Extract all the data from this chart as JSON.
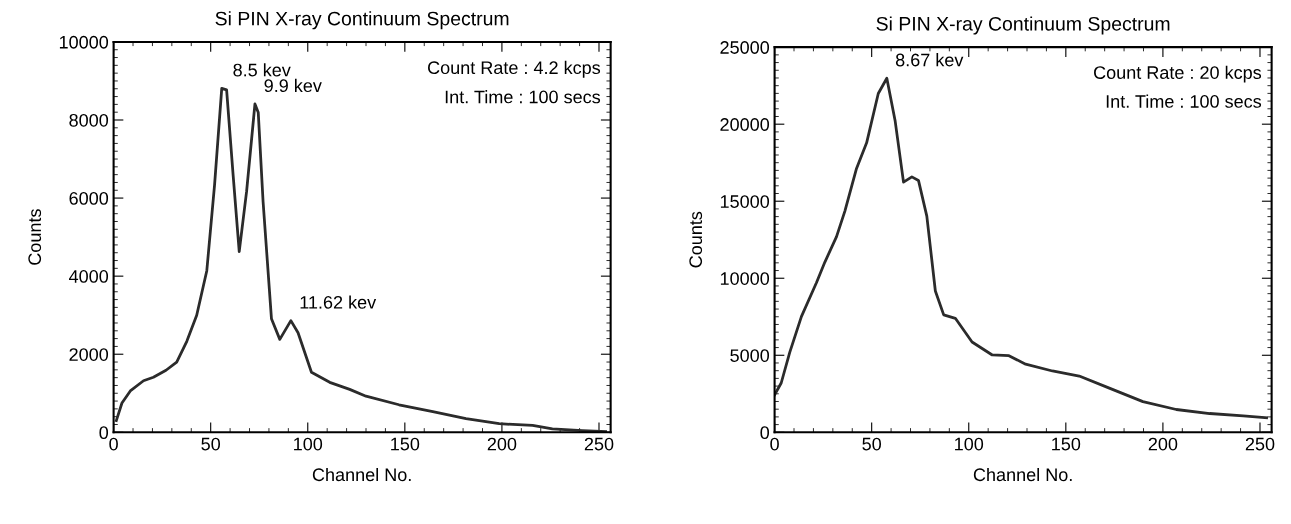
{
  "chart_data": [
    {
      "type": "line",
      "title": "Si PIN X-ray Continuum Spectrum",
      "xlabel": "Channel No.",
      "ylabel": "Counts",
      "color": "#2b2b2b",
      "x": [
        1.4,
        4.3,
        8.6,
        15.4,
        20.5,
        27,
        32.5,
        37.7,
        42.8,
        48,
        52,
        55.7,
        58.2,
        61.6,
        64.7,
        68.5,
        72.8,
        74.5,
        77,
        81.3,
        85.6,
        91.3,
        95,
        101.9,
        111.3,
        121.6,
        130,
        147,
        164.4,
        181.5,
        198.6,
        215.8,
        226,
        241.4,
        253.4
      ],
      "values": [
        300,
        750,
        1060,
        1320,
        1410,
        1590,
        1800,
        2330,
        3000,
        4140,
        6340,
        8810,
        8770,
        6560,
        4630,
        6170,
        8410,
        8190,
        5900,
        2910,
        2380,
        2860,
        2550,
        1540,
        1280,
        1100,
        925,
        705,
        530,
        350,
        220,
        176,
        88,
        44,
        20
      ],
      "xlim": [
        0,
        256
      ],
      "xticks": [
        0,
        50,
        100,
        150,
        200,
        250
      ],
      "ylim": [
        0,
        10000
      ],
      "yticks": [
        0,
        2000,
        4000,
        6000,
        8000,
        10000
      ],
      "grid": false,
      "marker": "none",
      "line_style": "solid",
      "annotations": [
        {
          "text": "8.5 kev",
          "x": 57,
          "y": 8810
        },
        {
          "text": "9.9 kev",
          "x": 73,
          "y": 8410
        },
        {
          "text": "11.62 kev",
          "x": 91.3,
          "y": 2860
        },
        "Count Rate : 4.2 kcps",
        "Int. Time : 100 secs"
      ]
    },
    {
      "type": "line",
      "title": "Si PIN X-ray Continuum Spectrum",
      "xlabel": "Channel No.",
      "ylabel": "Counts",
      "color": "#2b2b2b",
      "x": [
        0,
        3.4,
        7.8,
        13.8,
        21.6,
        25.9,
        31.9,
        36.2,
        42.2,
        47.4,
        53.4,
        57.8,
        62.1,
        66.4,
        70.7,
        74.1,
        78.4,
        82.8,
        87.1,
        93.1,
        101.7,
        112.1,
        120.7,
        129.3,
        143.1,
        156.9,
        172.4,
        189.7,
        206.9,
        224.1,
        241.4,
        253.4
      ],
      "values": [
        2430,
        3200,
        5190,
        7510,
        9720,
        11050,
        12700,
        14360,
        17130,
        18790,
        21990,
        22980,
        20200,
        16240,
        16580,
        16350,
        14030,
        9170,
        7620,
        7400,
        5860,
        5020,
        4970,
        4420,
        3980,
        3650,
        2870,
        1990,
        1480,
        1220,
        1060,
        950
      ],
      "xlim": [
        0,
        256
      ],
      "xticks": [
        0,
        50,
        100,
        150,
        200,
        250
      ],
      "ylim": [
        0,
        25000
      ],
      "yticks": [
        0,
        5000,
        10000,
        15000,
        20000,
        25000
      ],
      "grid": false,
      "marker": "none",
      "line_style": "solid",
      "annotations": [
        {
          "text": "8.67 kev",
          "x": 57.8,
          "y": 22980
        },
        "Count Rate : 20 kcps",
        "Int. Time : 100 secs"
      ]
    }
  ]
}
